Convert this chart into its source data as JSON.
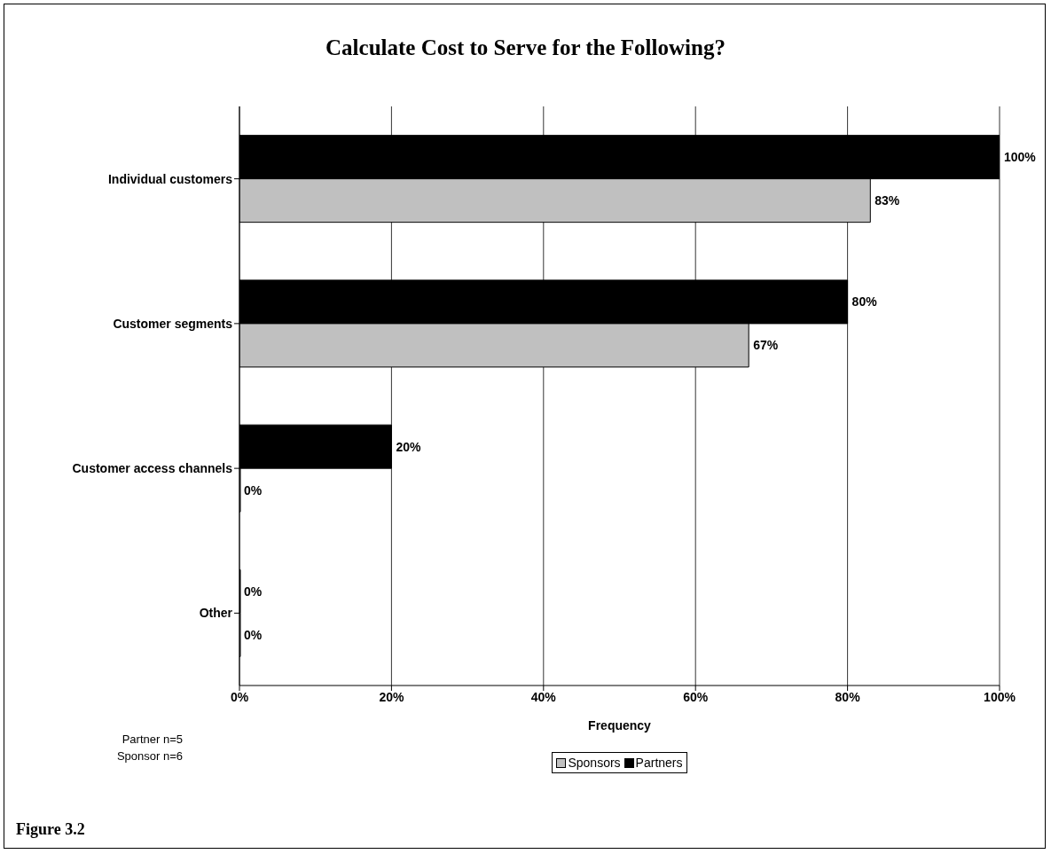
{
  "chart_data": {
    "type": "bar",
    "orientation": "horizontal",
    "title": "Calculate Cost to Serve for the Following?",
    "xlabel": "Frequency",
    "categories": [
      "Individual customers",
      "Customer segments",
      "Customer access channels",
      "Other"
    ],
    "series": [
      {
        "name": "Sponsors",
        "color": "#c0c0c0",
        "values": [
          83,
          67,
          0,
          0
        ],
        "value_labels": [
          "83%",
          "67%",
          "0%",
          "0%"
        ]
      },
      {
        "name": "Partners",
        "color": "#000000",
        "values": [
          100,
          80,
          20,
          0
        ],
        "value_labels": [
          "100%",
          "80%",
          "20%",
          "0%"
        ]
      }
    ],
    "xlim": [
      0,
      100
    ],
    "xticks": [
      {
        "value": 0,
        "label": "0%"
      },
      {
        "value": 20,
        "label": "20%"
      },
      {
        "value": 40,
        "label": "40%"
      },
      {
        "value": 60,
        "label": "60%"
      },
      {
        "value": 80,
        "label": "80%"
      },
      {
        "value": 100,
        "label": "100%"
      }
    ],
    "grid": "x",
    "legend": "bottom",
    "annotations": [
      "Partner n=5",
      "Sponsor n=6",
      "Figure 3.2"
    ]
  }
}
